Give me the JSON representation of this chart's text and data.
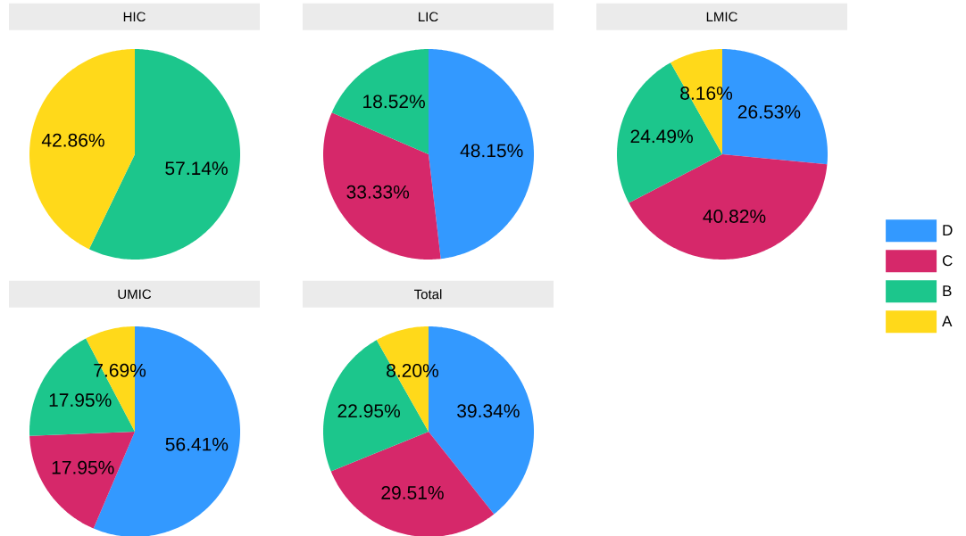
{
  "chart_data": [
    {
      "type": "pie",
      "title": "HIC",
      "categories": [
        null,
        null
      ],
      "values": [
        57.14,
        42.86
      ],
      "colors": [
        "#1cc68c",
        "#ffd91a"
      ],
      "value_labels": [
        "57.14%",
        "42.86%"
      ]
    },
    {
      "type": "pie",
      "title": "LIC",
      "categories": [
        null,
        null,
        null
      ],
      "values": [
        48.15,
        33.33,
        18.52
      ],
      "colors": [
        "#3399ff",
        "#d6286a",
        "#1cc68c"
      ],
      "value_labels": [
        "48.15%",
        "33.33%",
        "18.52%"
      ]
    },
    {
      "type": "pie",
      "title": "LMIC",
      "categories": [
        "D",
        "C",
        "B",
        "A"
      ],
      "values": [
        26.53,
        40.82,
        24.49,
        8.16
      ],
      "colors": [
        "#3399ff",
        "#d6286a",
        "#1cc68c",
        "#ffd91a"
      ],
      "value_labels": [
        "26.53%",
        "40.82%",
        "24.49%",
        "8.16%"
      ],
      "legend": "right"
    },
    {
      "type": "pie",
      "title": "UMIC",
      "categories": [
        null,
        null,
        null,
        null
      ],
      "values": [
        56.41,
        17.95,
        17.95,
        7.69
      ],
      "colors": [
        "#3399ff",
        "#d6286a",
        "#1cc68c",
        "#ffd91a"
      ],
      "value_labels": [
        "56.41%",
        "17.95%",
        "17.95%",
        "7.69%"
      ]
    },
    {
      "type": "pie",
      "title": "Total",
      "categories": [
        null,
        null,
        null,
        null
      ],
      "values": [
        39.34,
        29.51,
        22.95,
        8.2
      ],
      "colors": [
        "#3399ff",
        "#d6286a",
        "#1cc68c",
        "#ffd91a"
      ],
      "value_labels": [
        "39.34%",
        "29.51%",
        "22.95%",
        "8.20%"
      ]
    }
  ]
}
